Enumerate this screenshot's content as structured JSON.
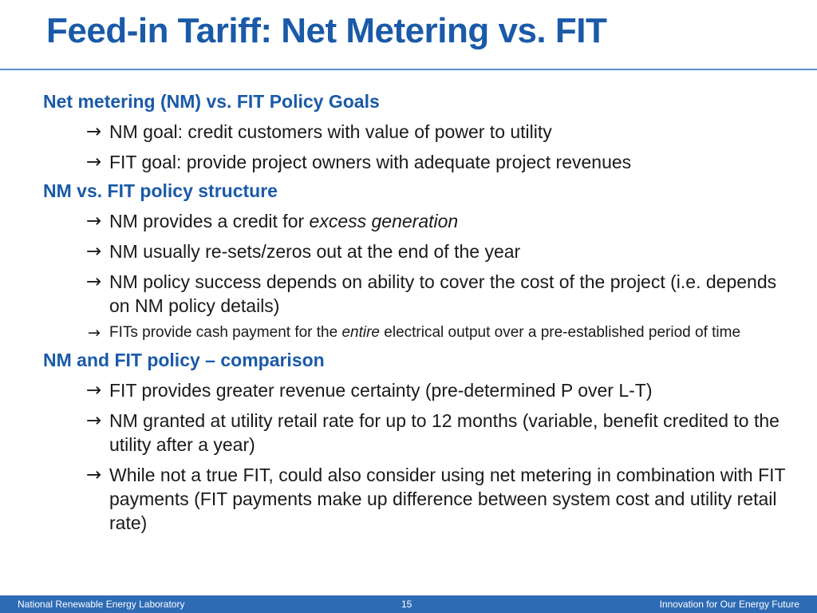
{
  "title": "Feed-in Tariff: Net Metering vs. FIT",
  "arrow_glyph": "→",
  "sections": [
    {
      "heading": "Net metering (NM) vs. FIT Policy Goals",
      "items": [
        {
          "text": "NM goal: credit customers with value of power to utility"
        },
        {
          "text": "FIT goal: provide project owners with adequate project revenues"
        }
      ]
    },
    {
      "heading": "NM vs. FIT policy structure",
      "items": [
        {
          "pre": "NM provides a credit for ",
          "em": "excess generation",
          "post": ""
        },
        {
          "text": "NM usually re-sets/zeros out at the end of the year"
        },
        {
          "text": "NM policy success depends on ability to cover the cost of the project (i.e. depends on NM policy details)"
        },
        {
          "pre": "FITs provide cash payment for the ",
          "em": "entire",
          "post": " electrical output over a pre-established period of time"
        }
      ]
    },
    {
      "heading": "NM and FIT policy – comparison",
      "items": [
        {
          "text": "FIT provides greater revenue certainty (pre-determined P over L-T)"
        },
        {
          "text": "NM granted at utility retail rate for up to 12 months (variable, benefit credited to the utility after a year)"
        },
        {
          "text": "While not a true FIT, could also consider using net metering in combination with FIT payments (FIT payments make up difference between system cost and utility retail rate)"
        }
      ]
    }
  ],
  "footer": {
    "left": "National Renewable Energy Laboratory",
    "page": "15",
    "right": "Innovation for Our Energy Future"
  },
  "colors": {
    "title": "#1a5aa8",
    "footer_bar": "#2e6bb5",
    "body_text": "#1a1a1a"
  }
}
